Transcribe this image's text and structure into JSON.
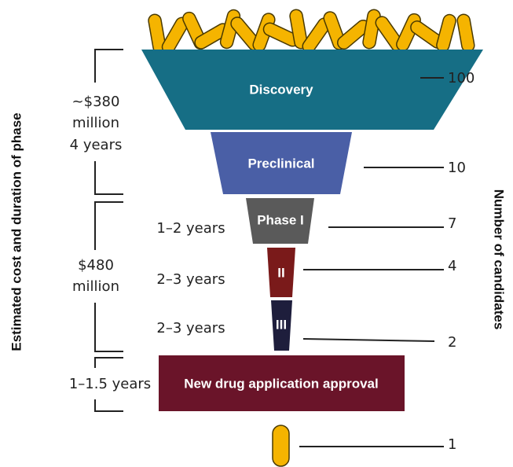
{
  "axis_titles": {
    "left": "Estimated cost and duration of phase",
    "right": "Number of candidates"
  },
  "stages": [
    {
      "label": "Discovery",
      "candidates": "100"
    },
    {
      "label": "Preclinical",
      "candidates": "10"
    },
    {
      "label": "Phase I",
      "candidates": "7",
      "duration": "1–2 years"
    },
    {
      "label": "II",
      "candidates": "4",
      "duration": "2–3 years"
    },
    {
      "label": "III",
      "candidates": "2",
      "duration": "2–3 years"
    },
    {
      "label": "New drug application approval",
      "duration": "1–1.5 years"
    }
  ],
  "approved": {
    "candidates": "1"
  },
  "costs": [
    {
      "lines": [
        "~$380",
        "million",
        "4 years"
      ]
    },
    {
      "lines": [
        "$480",
        "million"
      ]
    }
  ]
}
